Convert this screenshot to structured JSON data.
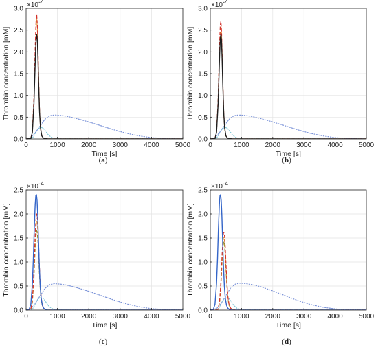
{
  "colors": {
    "solid_dark": "#1f1f1f",
    "solid_blue": "#3465c8",
    "dashed_red": "#d2312b",
    "dashed_orange": "#e6a23c",
    "dashed_olive": "#8a8a30",
    "dotted_blue": "#7a92d8",
    "dotted_cyan": "#84c9d8",
    "grid": "#e3e3e3"
  },
  "chart_data": [
    {
      "type": "line",
      "panel_label": "(a)",
      "xlabel": "Time [s]",
      "ylabel": "Thrombin concentration [mM]",
      "y_exponent_base": "×10",
      "y_exponent": "-4",
      "xlim": [
        0,
        5000
      ],
      "ylim": [
        0,
        3.0
      ],
      "xticks": [
        0,
        1000,
        2000,
        3000,
        4000,
        5000
      ],
      "yticks": [
        0,
        0.5,
        1.0,
        1.5,
        2.0,
        2.5,
        3.0
      ],
      "ytick_labels": [
        "0.0",
        "0.5",
        "1.0",
        "1.5",
        "2.0",
        "2.5",
        "3.0"
      ],
      "grid": true,
      "series": [
        {
          "style": "solid",
          "color": "#1f1f1f",
          "x": [
            0,
            150,
            200,
            250,
            280,
            300,
            320,
            340,
            360,
            380,
            400,
            430,
            460,
            500,
            550,
            600,
            700,
            5000
          ],
          "y": [
            0,
            0.01,
            0.15,
            0.8,
            1.5,
            1.95,
            2.3,
            2.4,
            2.25,
            1.8,
            1.25,
            0.6,
            0.25,
            0.07,
            0.02,
            0.01,
            0,
            0
          ]
        },
        {
          "style": "dashed",
          "color": "#d2312b",
          "x": [
            0,
            150,
            200,
            250,
            280,
            300,
            320,
            340,
            360,
            380,
            400,
            430,
            460,
            500,
            550,
            600,
            700,
            5000
          ],
          "y": [
            0,
            0.01,
            0.18,
            0.95,
            1.8,
            2.35,
            2.75,
            2.85,
            2.6,
            2.05,
            1.4,
            0.65,
            0.25,
            0.07,
            0.02,
            0.01,
            0,
            0
          ]
        },
        {
          "style": "dashed",
          "color": "#e6a23c",
          "x": [
            0,
            150,
            200,
            250,
            280,
            300,
            320,
            340,
            360,
            380,
            400,
            430,
            460,
            500,
            550,
            600,
            700,
            5000
          ],
          "y": [
            0,
            0.01,
            0.17,
            0.9,
            1.7,
            2.25,
            2.65,
            2.75,
            2.5,
            2.0,
            1.35,
            0.62,
            0.24,
            0.07,
            0.02,
            0.01,
            0,
            0
          ]
        },
        {
          "style": "dotted",
          "color": "#7a92d8",
          "x": [
            0,
            150,
            300,
            450,
            600,
            750,
            900,
            1100,
            1300,
            1600,
            2000,
            2400,
            2800,
            3200,
            3600,
            4000,
            4400,
            4800,
            5000
          ],
          "y": [
            0,
            0.03,
            0.15,
            0.3,
            0.45,
            0.53,
            0.55,
            0.54,
            0.52,
            0.47,
            0.39,
            0.3,
            0.21,
            0.13,
            0.07,
            0.03,
            0.012,
            0.004,
            0.002
          ]
        },
        {
          "style": "dotted",
          "color": "#84c9d8",
          "x": [
            0,
            150,
            200,
            250,
            300,
            350,
            400,
            450,
            500,
            550,
            600,
            650,
            700,
            800,
            900,
            1000,
            5000
          ],
          "y": [
            0,
            0,
            0.02,
            0.07,
            0.14,
            0.2,
            0.24,
            0.26,
            0.26,
            0.24,
            0.2,
            0.15,
            0.1,
            0.04,
            0.015,
            0.005,
            0
          ]
        }
      ]
    },
    {
      "type": "line",
      "panel_label": "(b)",
      "xlabel": "Time [s]",
      "ylabel": "Thrombin concentration [mM]",
      "y_exponent_base": "×10",
      "y_exponent": "-4",
      "xlim": [
        0,
        5000
      ],
      "ylim": [
        0,
        3.0
      ],
      "xticks": [
        0,
        1000,
        2000,
        3000,
        4000,
        5000
      ],
      "yticks": [
        0,
        0.5,
        1.0,
        1.5,
        2.0,
        2.5,
        3.0
      ],
      "ytick_labels": [
        "0.0",
        "0.5",
        "1.0",
        "1.5",
        "2.0",
        "2.5",
        "3.0"
      ],
      "grid": true,
      "series": [
        {
          "style": "solid",
          "color": "#1f1f1f",
          "x": [
            0,
            150,
            200,
            250,
            280,
            300,
            320,
            340,
            360,
            380,
            400,
            430,
            460,
            500,
            550,
            600,
            700,
            5000
          ],
          "y": [
            0,
            0.01,
            0.15,
            0.8,
            1.5,
            1.95,
            2.3,
            2.4,
            2.25,
            1.8,
            1.25,
            0.6,
            0.25,
            0.07,
            0.02,
            0.01,
            0,
            0
          ]
        },
        {
          "style": "dashed",
          "color": "#d2312b",
          "x": [
            0,
            150,
            200,
            250,
            280,
            300,
            320,
            340,
            360,
            380,
            400,
            430,
            460,
            500,
            550,
            600,
            700,
            5000
          ],
          "y": [
            0,
            0.01,
            0.17,
            0.9,
            1.7,
            2.25,
            2.62,
            2.7,
            2.48,
            1.95,
            1.35,
            0.62,
            0.24,
            0.07,
            0.02,
            0.01,
            0,
            0
          ]
        },
        {
          "style": "dashed",
          "color": "#e6a23c",
          "x": [
            0,
            150,
            200,
            250,
            280,
            300,
            320,
            340,
            360,
            380,
            400,
            430,
            460,
            500,
            550,
            600,
            700,
            5000
          ],
          "y": [
            0,
            0.01,
            0.16,
            0.86,
            1.62,
            2.15,
            2.5,
            2.6,
            2.4,
            1.9,
            1.3,
            0.6,
            0.23,
            0.07,
            0.02,
            0.01,
            0,
            0
          ]
        },
        {
          "style": "dotted",
          "color": "#7a92d8",
          "x": [
            0,
            150,
            300,
            450,
            600,
            750,
            900,
            1100,
            1300,
            1600,
            2000,
            2400,
            2800,
            3200,
            3600,
            4000,
            4400,
            4800,
            5000
          ],
          "y": [
            0,
            0.03,
            0.15,
            0.3,
            0.45,
            0.53,
            0.55,
            0.54,
            0.52,
            0.47,
            0.39,
            0.3,
            0.21,
            0.13,
            0.07,
            0.03,
            0.012,
            0.004,
            0.002
          ]
        },
        {
          "style": "dotted",
          "color": "#84c9d8",
          "x": [
            0,
            150,
            200,
            250,
            300,
            350,
            400,
            450,
            500,
            550,
            600,
            650,
            700,
            800,
            900,
            1000,
            5000
          ],
          "y": [
            0,
            0,
            0.02,
            0.07,
            0.14,
            0.2,
            0.24,
            0.26,
            0.26,
            0.24,
            0.2,
            0.15,
            0.1,
            0.04,
            0.015,
            0.005,
            0
          ]
        }
      ]
    },
    {
      "type": "line",
      "panel_label": "(c)",
      "xlabel": "Time [s]",
      "ylabel": "Thrombin concentration [mM]",
      "y_exponent_base": "×10",
      "y_exponent": "-4",
      "xlim": [
        0,
        5000
      ],
      "ylim": [
        0,
        2.5
      ],
      "xticks": [
        0,
        1000,
        2000,
        3000,
        4000,
        5000
      ],
      "yticks": [
        0,
        0.5,
        1.0,
        1.5,
        2.0,
        2.5
      ],
      "ytick_labels": [
        "0.0",
        "0.5",
        "1.0",
        "1.5",
        "2.0",
        "2.5"
      ],
      "grid": true,
      "series": [
        {
          "style": "solid",
          "color": "#3465c8",
          "x": [
            0,
            100,
            150,
            200,
            230,
            260,
            290,
            310,
            330,
            350,
            370,
            390,
            420,
            450,
            480,
            520,
            560,
            620,
            700,
            5000
          ],
          "y": [
            0,
            0.02,
            0.12,
            0.55,
            1.05,
            1.7,
            2.2,
            2.38,
            2.4,
            2.28,
            1.98,
            1.55,
            0.95,
            0.5,
            0.25,
            0.1,
            0.04,
            0.01,
            0,
            0
          ]
        },
        {
          "style": "dashed",
          "color": "#d2312b",
          "x": [
            0,
            150,
            200,
            250,
            280,
            310,
            340,
            360,
            380,
            400,
            420,
            450,
            480,
            520,
            560,
            620,
            700,
            5000
          ],
          "y": [
            0,
            0.02,
            0.2,
            0.8,
            1.4,
            1.85,
            2.0,
            1.92,
            1.7,
            1.35,
            1.0,
            0.55,
            0.27,
            0.1,
            0.04,
            0.01,
            0,
            0
          ]
        },
        {
          "style": "dashed",
          "color": "#e6a23c",
          "x": [
            0,
            150,
            200,
            250,
            280,
            310,
            340,
            360,
            380,
            400,
            420,
            450,
            480,
            520,
            560,
            620,
            700,
            5000
          ],
          "y": [
            0,
            0.02,
            0.18,
            0.72,
            1.28,
            1.7,
            1.85,
            1.78,
            1.58,
            1.25,
            0.92,
            0.5,
            0.25,
            0.09,
            0.035,
            0.01,
            0,
            0
          ]
        },
        {
          "style": "dashed",
          "color": "#8a8a30",
          "x": [
            0,
            150,
            200,
            250,
            280,
            310,
            340,
            360,
            380,
            400,
            420,
            450,
            480,
            520,
            560,
            620,
            700,
            5000
          ],
          "y": [
            0,
            0.02,
            0.16,
            0.65,
            1.15,
            1.52,
            1.65,
            1.58,
            1.4,
            1.1,
            0.82,
            0.45,
            0.22,
            0.08,
            0.03,
            0.01,
            0,
            0
          ]
        },
        {
          "style": "dotted",
          "color": "#7a92d8",
          "x": [
            0,
            150,
            300,
            450,
            600,
            750,
            900,
            1100,
            1300,
            1600,
            2000,
            2400,
            2800,
            3200,
            3600,
            4000,
            4400,
            4800,
            5000
          ],
          "y": [
            0,
            0.03,
            0.15,
            0.3,
            0.45,
            0.53,
            0.55,
            0.54,
            0.52,
            0.47,
            0.39,
            0.3,
            0.21,
            0.13,
            0.07,
            0.03,
            0.012,
            0.004,
            0.002
          ]
        },
        {
          "style": "dotted",
          "color": "#84c9d8",
          "x": [
            0,
            150,
            200,
            250,
            300,
            350,
            400,
            450,
            500,
            550,
            600,
            650,
            700,
            800,
            900,
            1000,
            5000
          ],
          "y": [
            0,
            0,
            0.02,
            0.07,
            0.14,
            0.2,
            0.24,
            0.26,
            0.26,
            0.24,
            0.2,
            0.15,
            0.1,
            0.04,
            0.015,
            0.005,
            0
          ]
        }
      ]
    },
    {
      "type": "line",
      "panel_label": "(d)",
      "xlabel": "Time [s]",
      "ylabel": "Thrombin concentration [mM]",
      "y_exponent_base": "×10",
      "y_exponent": "-4",
      "xlim": [
        0,
        5000
      ],
      "ylim": [
        0,
        2.5
      ],
      "xticks": [
        0,
        1000,
        2000,
        3000,
        4000,
        5000
      ],
      "yticks": [
        0,
        0.5,
        1.0,
        1.5,
        2.0,
        2.5
      ],
      "ytick_labels": [
        "0.0",
        "0.5",
        "1.0",
        "1.5",
        "2.0",
        "2.5"
      ],
      "grid": true,
      "series": [
        {
          "style": "solid",
          "color": "#3465c8",
          "x": [
            0,
            100,
            150,
            200,
            230,
            260,
            290,
            310,
            330,
            350,
            370,
            390,
            420,
            450,
            480,
            520,
            560,
            620,
            700,
            5000
          ],
          "y": [
            0,
            0.02,
            0.12,
            0.55,
            1.05,
            1.7,
            2.2,
            2.38,
            2.4,
            2.28,
            1.98,
            1.55,
            0.95,
            0.5,
            0.25,
            0.1,
            0.04,
            0.01,
            0,
            0
          ]
        },
        {
          "style": "dashed",
          "color": "#d2312b",
          "x": [
            0,
            250,
            300,
            340,
            370,
            400,
            420,
            440,
            460,
            480,
            500,
            530,
            560,
            600,
            650,
            700,
            800,
            5000
          ],
          "y": [
            0,
            0.02,
            0.2,
            0.6,
            1.05,
            1.45,
            1.6,
            1.62,
            1.52,
            1.3,
            1.0,
            0.6,
            0.3,
            0.12,
            0.04,
            0.015,
            0,
            0
          ]
        },
        {
          "style": "dashed",
          "color": "#e6a23c",
          "x": [
            0,
            250,
            300,
            340,
            370,
            400,
            420,
            440,
            460,
            480,
            500,
            530,
            560,
            600,
            650,
            700,
            800,
            5000
          ],
          "y": [
            0,
            0.02,
            0.19,
            0.56,
            0.98,
            1.36,
            1.5,
            1.52,
            1.42,
            1.22,
            0.94,
            0.56,
            0.28,
            0.11,
            0.04,
            0.012,
            0,
            0
          ]
        },
        {
          "style": "dashed",
          "color": "#8a8a30",
          "x": [
            0,
            250,
            300,
            340,
            370,
            400,
            420,
            440,
            460,
            480,
            500,
            530,
            560,
            600,
            650,
            700,
            800,
            5000
          ],
          "y": [
            0,
            0.02,
            0.18,
            0.52,
            0.9,
            1.25,
            1.4,
            1.42,
            1.32,
            1.12,
            0.86,
            0.52,
            0.26,
            0.1,
            0.035,
            0.01,
            0,
            0
          ]
        },
        {
          "style": "dotted",
          "color": "#7a92d8",
          "x": [
            0,
            200,
            350,
            500,
            650,
            800,
            950,
            1150,
            1350,
            1650,
            2000,
            2400,
            2800,
            3200,
            3600,
            4000,
            4400,
            4800,
            5000
          ],
          "y": [
            0,
            0.03,
            0.14,
            0.3,
            0.46,
            0.54,
            0.56,
            0.55,
            0.53,
            0.48,
            0.4,
            0.3,
            0.2,
            0.12,
            0.06,
            0.025,
            0.01,
            0.003,
            0.001
          ]
        },
        {
          "style": "dotted",
          "color": "#84c9d8",
          "x": [
            0,
            200,
            250,
            300,
            350,
            400,
            450,
            500,
            550,
            600,
            650,
            700,
            750,
            850,
            950,
            1050,
            5000
          ],
          "y": [
            0,
            0,
            0.02,
            0.07,
            0.14,
            0.2,
            0.24,
            0.26,
            0.26,
            0.24,
            0.2,
            0.15,
            0.1,
            0.04,
            0.015,
            0.005,
            0
          ]
        }
      ]
    }
  ]
}
